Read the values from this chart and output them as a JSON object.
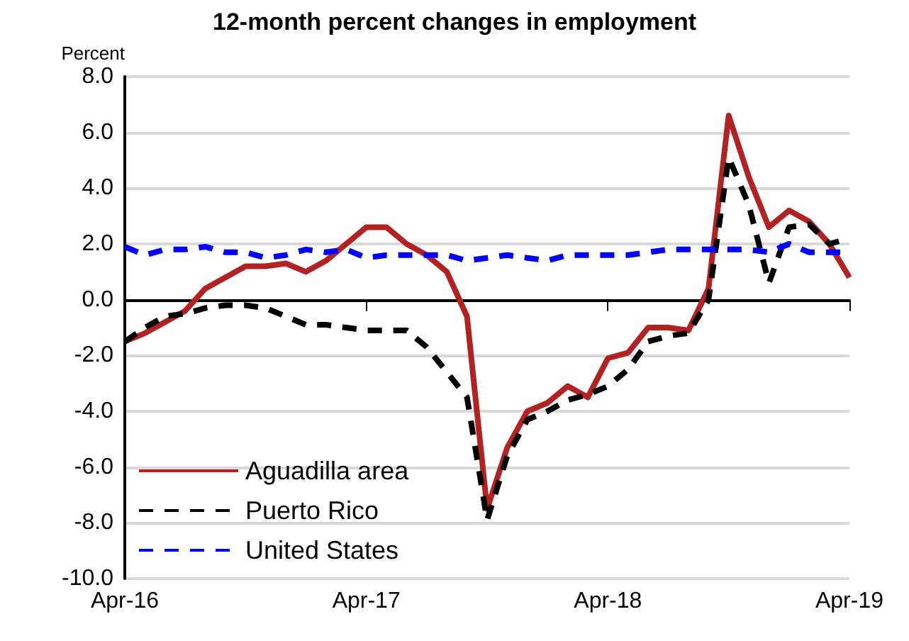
{
  "chart_data": {
    "type": "line",
    "title": "12-month percent changes in employment",
    "ylabel": "Percent",
    "categories": [
      "Apr-16",
      null,
      null,
      null,
      null,
      null,
      null,
      null,
      null,
      null,
      null,
      null,
      "Apr-17",
      null,
      null,
      null,
      null,
      null,
      null,
      null,
      null,
      null,
      null,
      null,
      "Apr-18",
      null,
      null,
      null,
      null,
      null,
      null,
      null,
      null,
      null,
      null,
      null,
      "Apr-19"
    ],
    "series": [
      {
        "name": "Aguadilla area",
        "color": "#b22222",
        "line_style": "solid",
        "values": [
          -1.5,
          -1.2,
          -0.8,
          -0.4,
          0.4,
          0.8,
          1.2,
          1.2,
          1.3,
          1.0,
          1.4,
          2.0,
          2.6,
          2.6,
          2.0,
          1.6,
          1.0,
          -0.6,
          -7.5,
          -5.3,
          -4.0,
          -3.7,
          -3.1,
          -3.5,
          -2.1,
          -1.9,
          -1.0,
          -1.0,
          -1.1,
          0.4,
          6.6,
          4.4,
          2.6,
          3.2,
          2.8,
          2.0,
          0.8
        ]
      },
      {
        "name": "Puerto Rico",
        "color": "#000000",
        "line_style": "dashed",
        "values": [
          -1.5,
          -1.0,
          -0.6,
          -0.5,
          -0.3,
          -0.2,
          -0.2,
          -0.3,
          -0.6,
          -0.9,
          -0.9,
          -1.0,
          -1.1,
          -1.1,
          -1.1,
          -1.7,
          -2.6,
          -3.5,
          -7.9,
          -5.6,
          -4.3,
          -4.0,
          -3.6,
          -3.4,
          -3.1,
          -2.5,
          -1.5,
          -1.3,
          -1.2,
          0.0,
          5.1,
          3.4,
          0.6,
          2.6,
          2.7,
          2.0,
          2.2
        ]
      },
      {
        "name": "United States",
        "color": "#0000ff",
        "line_style": "dashed",
        "values": [
          1.9,
          1.6,
          1.8,
          1.8,
          1.9,
          1.7,
          1.7,
          1.5,
          1.6,
          1.8,
          1.7,
          1.8,
          1.5,
          1.6,
          1.6,
          1.6,
          1.6,
          1.4,
          1.5,
          1.6,
          1.5,
          1.4,
          1.6,
          1.6,
          1.6,
          1.6,
          1.7,
          1.8,
          1.8,
          1.8,
          1.8,
          1.8,
          1.7,
          2.0,
          1.7,
          1.7,
          1.7
        ]
      }
    ],
    "ylim": [
      -10,
      8
    ],
    "yticks": [
      {
        "value": -10,
        "label": "-10.0"
      },
      {
        "value": -8,
        "label": "-8.0"
      },
      {
        "value": -6,
        "label": "-6.0"
      },
      {
        "value": -4,
        "label": "-4.0"
      },
      {
        "value": -2,
        "label": "-2.0"
      },
      {
        "value": 0,
        "label": "0.0"
      },
      {
        "value": 2,
        "label": "2.0"
      },
      {
        "value": 4,
        "label": "4.0"
      },
      {
        "value": 6,
        "label": "6.0"
      },
      {
        "value": 8,
        "label": "8.0"
      }
    ],
    "grid": "y",
    "legend": "bottom left",
    "marker": "none"
  }
}
